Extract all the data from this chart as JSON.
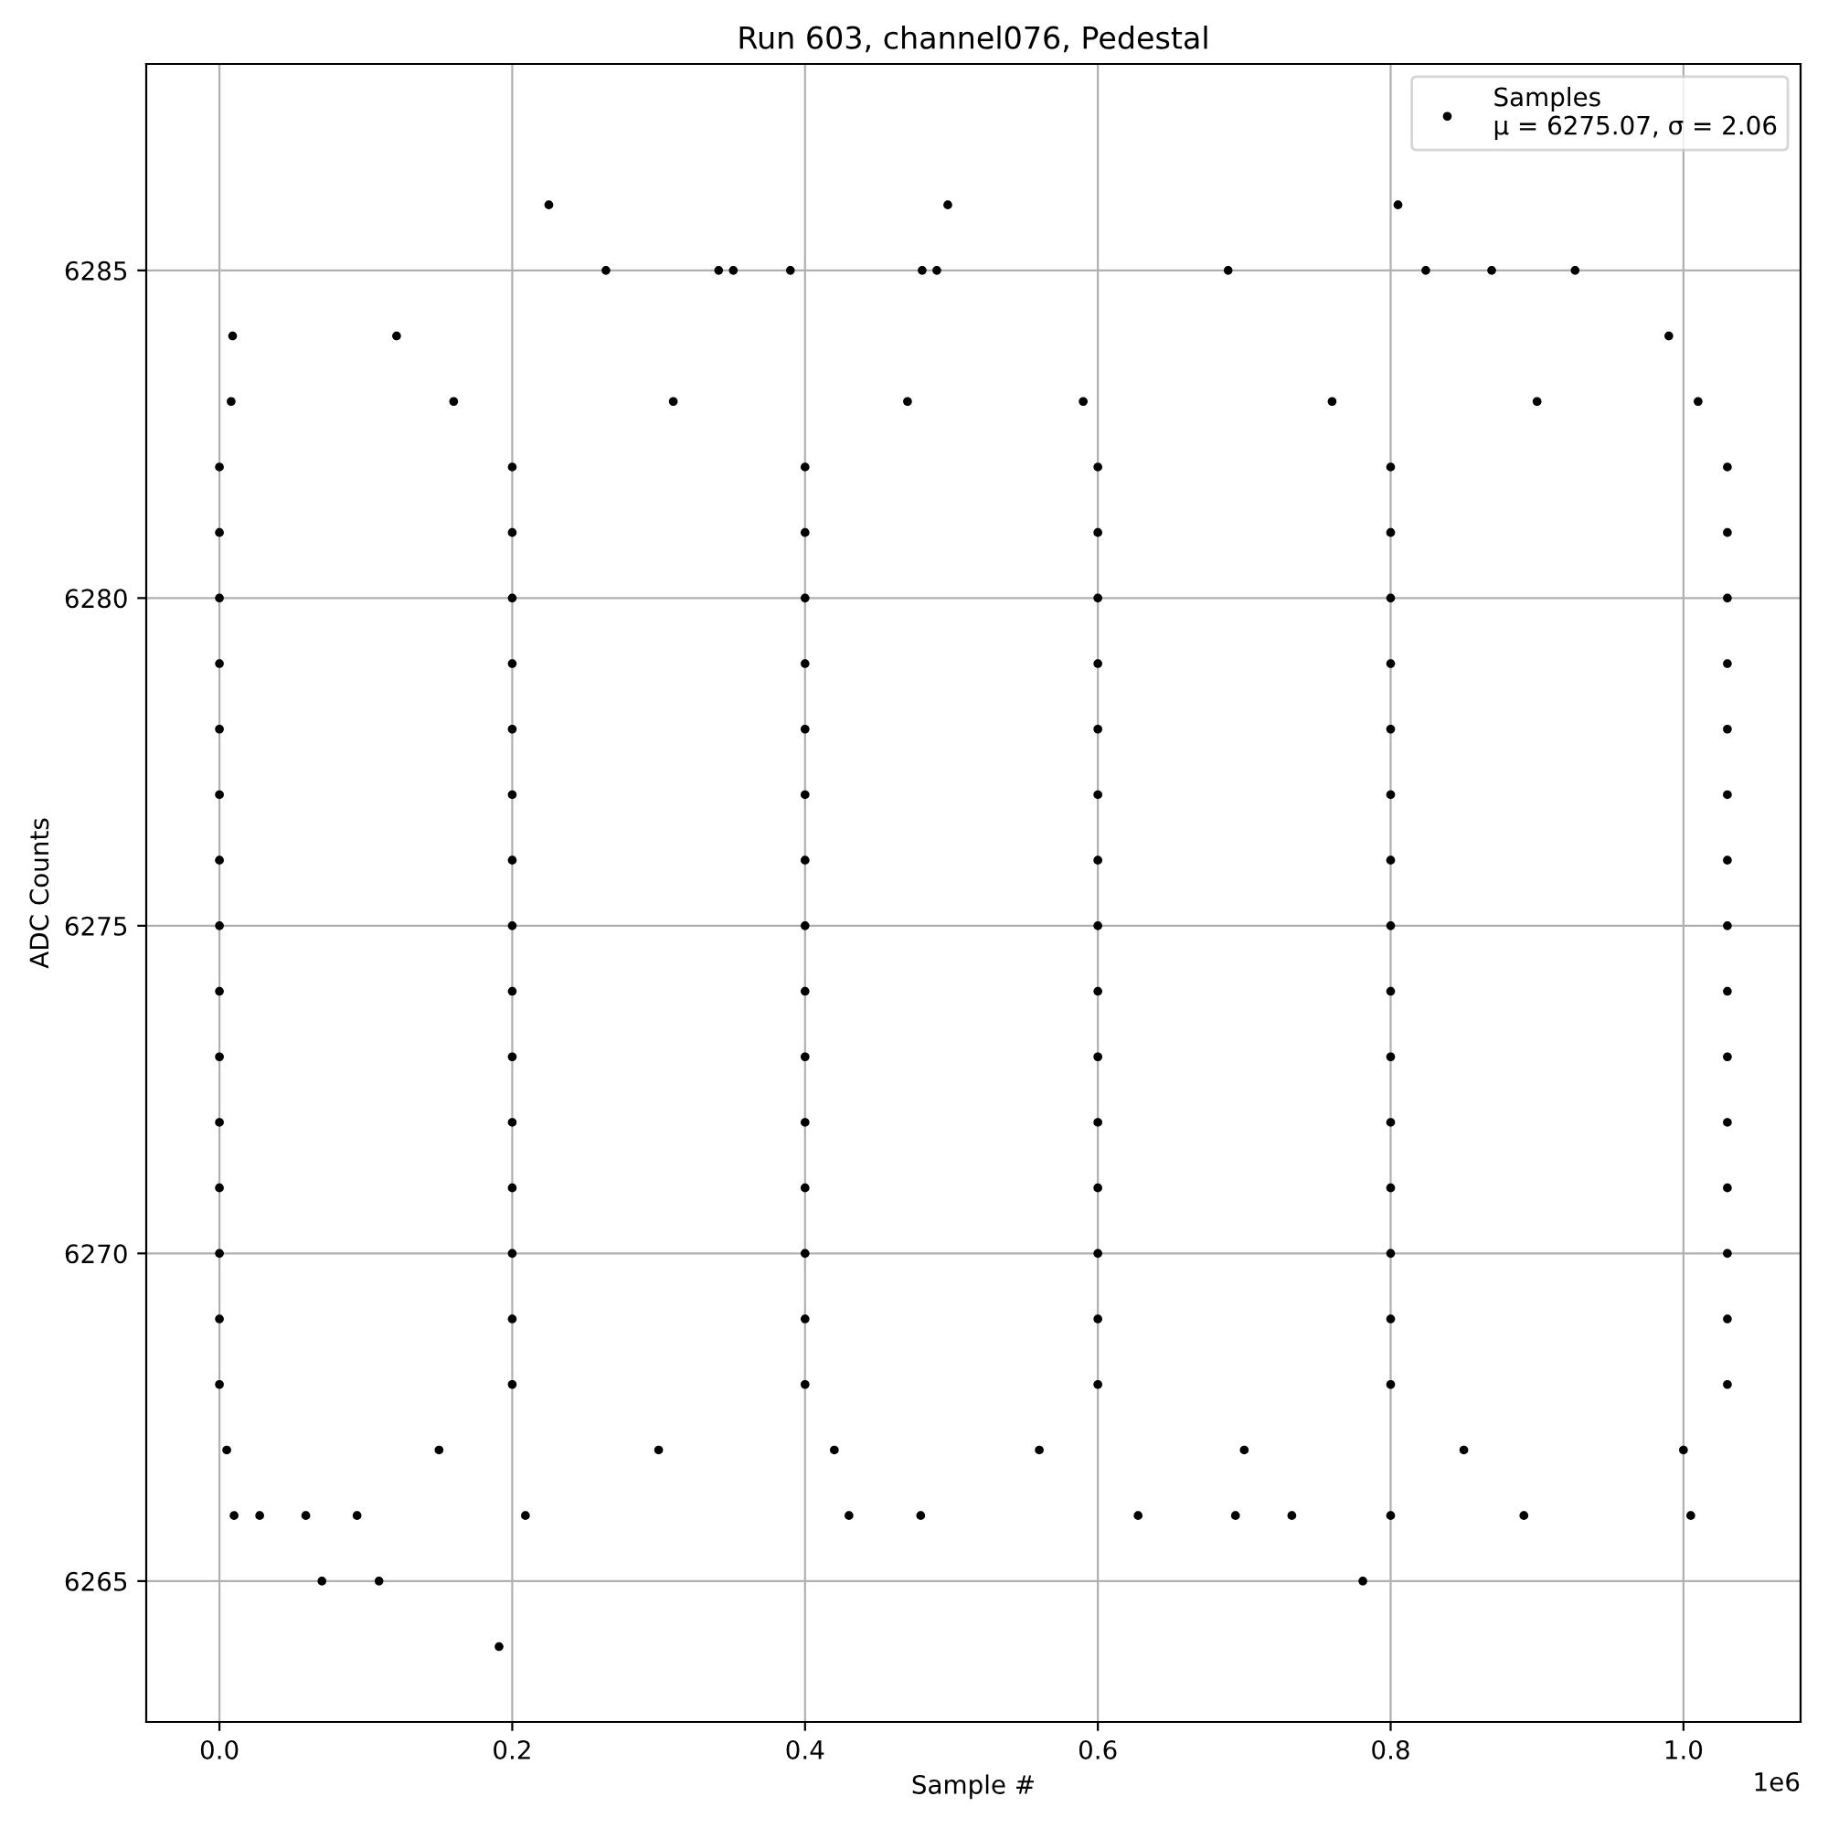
{
  "chart_data": {
    "type": "scatter",
    "title": "Run 603, channel076, Pedestal",
    "xlabel": "Sample #",
    "ylabel": "ADC Counts",
    "annotations": [
      "1e6"
    ],
    "xlim": [
      -0.05,
      1.08
    ],
    "ylim": [
      6262.85,
      6288.15
    ],
    "xticks": [
      {
        "value": 0,
        "label": "0.0"
      },
      0.2,
      0.4,
      0.6,
      0.8,
      {
        "value": 1,
        "label": "1.0"
      }
    ],
    "yticks": [
      6265,
      6270,
      6275,
      6280,
      6285
    ],
    "grid": true,
    "legend": "top right",
    "marker": "circle",
    "series": [
      {
        "name": "Samples\nμ = 6275.07, σ = 2.06",
        "color": "#000000",
        "x": [
          0,
          0.2,
          0.4,
          0.6,
          0.8,
          1.03,
          0,
          0.2,
          0.4,
          0.6,
          0.8,
          1.03,
          0,
          0.2,
          0.4,
          0.6,
          0.8,
          1.03,
          0,
          0.2,
          0.4,
          0.6,
          0.8,
          1.03,
          0,
          0.2,
          0.4,
          0.6,
          0.8,
          1.03,
          0,
          0.2,
          0.4,
          0.6,
          0.8,
          1.03,
          0,
          0.2,
          0.4,
          0.6,
          0.8,
          1.03,
          0,
          0.2,
          0.4,
          0.6,
          0.8,
          1.03,
          0,
          0.2,
          0.4,
          0.6,
          0.8,
          1.03,
          0,
          0.2,
          0.4,
          0.6,
          0.8,
          1.03,
          0,
          0.2,
          0.4,
          0.6,
          0.8,
          1.03,
          0,
          0.2,
          0.4,
          0.6,
          0.8,
          1.03,
          0,
          0.2,
          0.4,
          0.6,
          0.8,
          1.03,
          0,
          0.2,
          0.4,
          0.6,
          0.8,
          1.03,
          0,
          0.2,
          0.4,
          0.6,
          0.8,
          1.03,
          0.005,
          0.15,
          0.3,
          0.42,
          0.56,
          0.7,
          0.85,
          1.0,
          0.008,
          0.16,
          0.31,
          0.47,
          0.59,
          0.76,
          0.9,
          1.01,
          0.009,
          0.121,
          0.99,
          0.225,
          0.4975,
          0.805,
          0.264,
          0.341,
          0.351,
          0.39,
          0.48,
          0.49,
          0.689,
          0.824,
          0.869,
          0.926,
          0.07,
          0.109,
          0.781,
          0.191,
          0.01,
          0.0275,
          0.059,
          0.094,
          0.209,
          0.43,
          0.479,
          0.6275,
          0.694,
          0.7325,
          0.8,
          0.891,
          1.005
        ],
        "values": [
          6268,
          6268,
          6268,
          6268,
          6268,
          6268,
          6269,
          6269,
          6269,
          6269,
          6269,
          6269,
          6270,
          6270,
          6270,
          6270,
          6270,
          6270,
          6271,
          6271,
          6271,
          6271,
          6271,
          6271,
          6272,
          6272,
          6272,
          6272,
          6272,
          6272,
          6273,
          6273,
          6273,
          6273,
          6273,
          6273,
          6274,
          6274,
          6274,
          6274,
          6274,
          6274,
          6275,
          6275,
          6275,
          6275,
          6275,
          6275,
          6276,
          6276,
          6276,
          6276,
          6276,
          6276,
          6277,
          6277,
          6277,
          6277,
          6277,
          6277,
          6278,
          6278,
          6278,
          6278,
          6278,
          6278,
          6279,
          6279,
          6279,
          6279,
          6279,
          6279,
          6280,
          6280,
          6280,
          6280,
          6280,
          6280,
          6281,
          6281,
          6281,
          6281,
          6281,
          6281,
          6282,
          6282,
          6282,
          6282,
          6282,
          6282,
          6267,
          6267,
          6267,
          6267,
          6267,
          6267,
          6267,
          6267,
          6283,
          6283,
          6283,
          6283,
          6283,
          6283,
          6283,
          6283,
          6284,
          6284,
          6284,
          6286,
          6286,
          6286,
          6285,
          6285,
          6285,
          6285,
          6285,
          6285,
          6285,
          6285,
          6285,
          6285,
          6265,
          6265,
          6265,
          6264,
          6266,
          6266,
          6266,
          6266,
          6266,
          6266,
          6266,
          6266,
          6266,
          6266,
          6266,
          6266,
          6266
        ]
      }
    ]
  }
}
